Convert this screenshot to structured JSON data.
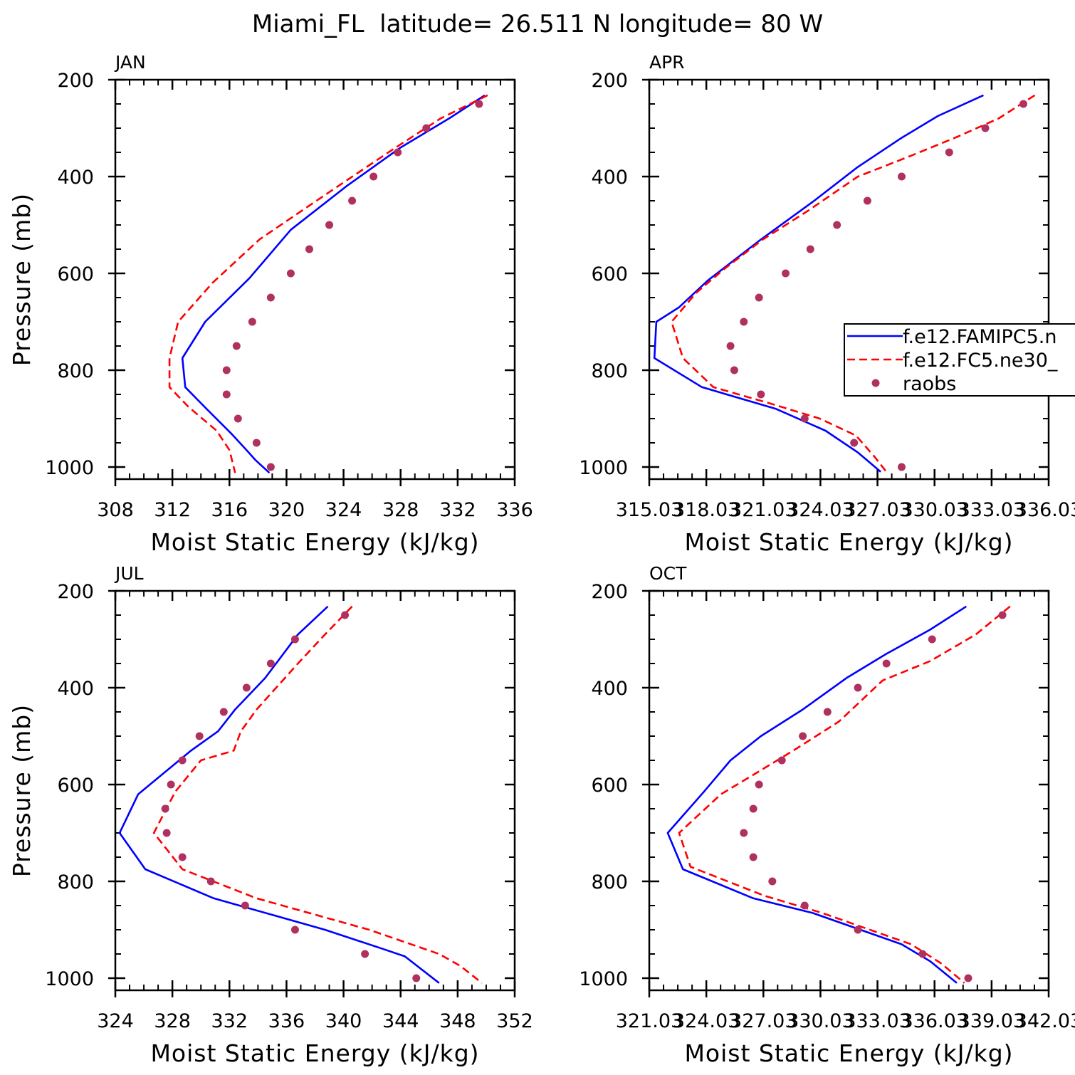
{
  "figure": {
    "title": "Miami_FL  latitude= 26.511 N longitude= 80 W"
  },
  "legend": {
    "placement": "right-middle of APR panel (clipped at figure edge)",
    "entries": [
      {
        "label": "f.e12.FAMIPC5.n",
        "style": "solid",
        "color": "#0000ff"
      },
      {
        "label": "f.e12.FC5.ne30_",
        "style": "dashed",
        "color": "#ff0000"
      },
      {
        "label": "raobs",
        "style": "dot",
        "color": "#b03060"
      }
    ]
  },
  "colors": {
    "model_solid": "#0000ff",
    "model_dashed": "#ff0000",
    "obs": "#b03060"
  },
  "chart_data": [
    {
      "type": "line",
      "panel_label": "JAN",
      "xlabel": "Moist Static Energy (kJ/kg)",
      "ylabel": "Pressure (mb)",
      "xlim": [
        308,
        336
      ],
      "ylim": [
        200,
        1020
      ],
      "y_inverted": true,
      "xticks": [
        308,
        312,
        316,
        320,
        324,
        328,
        332,
        336
      ],
      "xtick_labels": [
        "308",
        "312",
        "316",
        "320",
        "324",
        "328",
        "332",
        "336"
      ],
      "yticks": [
        200,
        400,
        600,
        800,
        1000
      ],
      "ytick_labels": [
        "200",
        "400",
        "600",
        "800",
        "1000"
      ],
      "grid": false,
      "series": [
        {
          "name": "f.e12.FAMIPC5.n",
          "style": "solid",
          "x": [
            333.9,
            331.4,
            328.0,
            324.2,
            320.3,
            317.4,
            314.3,
            312.7,
            312.9,
            314.4,
            316.1,
            317.2,
            317.8,
            318.8
          ],
          "y": [
            232,
            280,
            340,
            420,
            510,
            610,
            700,
            775,
            835,
            880,
            930,
            965,
            985,
            1012
          ]
        },
        {
          "name": "f.e12.FC5.ne30_",
          "style": "dashed",
          "x": [
            334.1,
            330.8,
            327.4,
            322.6,
            318.1,
            314.8,
            312.4,
            311.8,
            311.8,
            313.1,
            315.1,
            316.0,
            316.4
          ],
          "y": [
            232,
            280,
            345,
            440,
            530,
            620,
            700,
            775,
            835,
            875,
            925,
            965,
            1012
          ]
        },
        {
          "name": "raobs",
          "style": "dots",
          "x": [
            333.5,
            329.8,
            327.8,
            326.1,
            324.6,
            323.0,
            321.6,
            320.3,
            318.9,
            317.6,
            316.5,
            315.8,
            315.8,
            316.6,
            317.9,
            318.9
          ],
          "y": [
            250,
            300,
            350,
            400,
            450,
            500,
            550,
            600,
            650,
            700,
            750,
            800,
            850,
            900,
            950,
            1000
          ]
        }
      ]
    },
    {
      "type": "line",
      "panel_label": "APR",
      "xlabel": "Moist Static Energy (kJ/kg)",
      "ylabel": "",
      "xlim": [
        315.03,
        336.03
      ],
      "ylim": [
        200,
        1020
      ],
      "y_inverted": true,
      "xticks": [
        315.03,
        318.03,
        321.03,
        324.03,
        327.03,
        330.03,
        333.03,
        336.03
      ],
      "xtick_labels": [
        "315.03",
        "318.03",
        "321.03",
        "324.03",
        "327.03",
        "330.03",
        "333.03",
        "336.03"
      ],
      "yticks": [
        200,
        400,
        600,
        800,
        1000
      ],
      "ytick_labels": [
        "200",
        "400",
        "600",
        "800",
        "1000"
      ],
      "grid": false,
      "series": [
        {
          "name": "f.e12.FAMIPC5.n",
          "style": "solid",
          "x": [
            332.6,
            330.2,
            328.3,
            326.0,
            323.7,
            320.9,
            318.1,
            316.6,
            315.4,
            315.3,
            317.8,
            321.7,
            324.3,
            326.0,
            327.2
          ],
          "y": [
            232,
            275,
            320,
            380,
            450,
            530,
            615,
            670,
            700,
            775,
            835,
            880,
            925,
            970,
            1010
          ]
        },
        {
          "name": "f.e12.FC5.ne30_",
          "style": "dashed",
          "x": [
            335.3,
            333.4,
            331.1,
            328.6,
            326.0,
            323.4,
            321.0,
            319.0,
            317.5,
            316.2,
            316.8,
            318.4,
            321.5,
            324.0,
            325.9,
            326.9,
            327.5
          ],
          "y": [
            232,
            280,
            320,
            360,
            400,
            470,
            530,
            590,
            640,
            700,
            775,
            835,
            870,
            900,
            935,
            980,
            1010
          ]
        },
        {
          "name": "raobs",
          "style": "dots",
          "x": [
            334.7,
            332.7,
            330.8,
            328.3,
            326.5,
            324.9,
            323.5,
            322.2,
            320.8,
            320.0,
            319.3,
            319.5,
            320.9,
            323.2,
            325.8,
            328.3
          ],
          "y": [
            250,
            300,
            350,
            400,
            450,
            500,
            550,
            600,
            650,
            700,
            750,
            800,
            850,
            900,
            950,
            1000
          ]
        }
      ]
    },
    {
      "type": "line",
      "panel_label": "JUL",
      "xlabel": "Moist Static Energy (kJ/kg)",
      "ylabel": "Pressure (mb)",
      "xlim": [
        324,
        352
      ],
      "ylim": [
        200,
        1020
      ],
      "y_inverted": true,
      "xticks": [
        324,
        328,
        332,
        336,
        340,
        344,
        348,
        352
      ],
      "xtick_labels": [
        "324",
        "328",
        "332",
        "336",
        "340",
        "344",
        "348",
        "352"
      ],
      "yticks": [
        200,
        400,
        600,
        800,
        1000
      ],
      "ytick_labels": [
        "200",
        "400",
        "600",
        "800",
        "1000"
      ],
      "grid": false,
      "series": [
        {
          "name": "f.e12.FAMIPC5.n",
          "style": "solid",
          "x": [
            338.9,
            336.8,
            334.5,
            332.4,
            331.2,
            329.3,
            325.6,
            324.3,
            326.1,
            330.9,
            338.7,
            342.8,
            344.3,
            346.7
          ],
          "y": [
            232,
            290,
            380,
            445,
            490,
            530,
            620,
            700,
            775,
            835,
            900,
            940,
            955,
            1010
          ]
        },
        {
          "name": "f.e12.FC5.ne30_",
          "style": "dashed",
          "x": [
            340.6,
            338.7,
            336.8,
            333.9,
            332.8,
            332.3,
            330.0,
            328.2,
            326.7,
            328.7,
            333.9,
            341.8,
            346.7,
            348.2,
            349.7
          ],
          "y": [
            232,
            290,
            350,
            445,
            490,
            530,
            550,
            615,
            700,
            775,
            835,
            900,
            950,
            975,
            1010
          ]
        },
        {
          "name": "raobs",
          "style": "dots",
          "x": [
            340.1,
            336.6,
            334.9,
            333.2,
            331.6,
            329.9,
            328.7,
            327.9,
            327.5,
            327.6,
            328.7,
            330.7,
            333.1,
            336.6,
            341.5,
            345.1
          ],
          "y": [
            250,
            300,
            350,
            400,
            450,
            500,
            550,
            600,
            650,
            700,
            750,
            800,
            850,
            900,
            950,
            1000
          ]
        }
      ]
    },
    {
      "type": "line",
      "panel_label": "OCT",
      "xlabel": "Moist Static Energy (kJ/kg)",
      "ylabel": "",
      "xlim": [
        321.03,
        342.03
      ],
      "ylim": [
        200,
        1020
      ],
      "y_inverted": true,
      "xticks": [
        321.03,
        324.03,
        327.03,
        330.03,
        333.03,
        336.03,
        339.03,
        342.03
      ],
      "xtick_labels": [
        "321.03",
        "324.03",
        "327.03",
        "330.03",
        "333.03",
        "336.03",
        "339.03",
        "342.03"
      ],
      "yticks": [
        200,
        400,
        600,
        800,
        1000
      ],
      "ytick_labels": [
        "200",
        "400",
        "600",
        "800",
        "1000"
      ],
      "grid": false,
      "series": [
        {
          "name": "f.e12.FAMIPC5.n",
          "style": "solid",
          "x": [
            337.7,
            335.8,
            333.5,
            331.4,
            329.1,
            326.9,
            325.3,
            323.9,
            322.0,
            322.8,
            326.5,
            329.6,
            334.3,
            335.8,
            337.2
          ],
          "y": [
            232,
            280,
            330,
            380,
            445,
            500,
            550,
            615,
            700,
            775,
            835,
            865,
            930,
            965,
            1010
          ]
        },
        {
          "name": "f.e12.FC5.ne30_",
          "style": "dashed",
          "x": [
            340.0,
            338.2,
            335.8,
            333.3,
            331.0,
            328.6,
            326.5,
            324.8,
            322.6,
            323.2,
            327.1,
            330.1,
            334.8,
            336.4,
            337.6
          ],
          "y": [
            232,
            290,
            345,
            385,
            470,
            530,
            580,
            620,
            700,
            770,
            830,
            865,
            930,
            970,
            1010
          ]
        },
        {
          "name": "raobs",
          "style": "dots",
          "x": [
            339.6,
            335.9,
            333.5,
            332.0,
            330.4,
            329.1,
            328.0,
            326.8,
            326.5,
            326.0,
            326.5,
            327.5,
            329.2,
            332.0,
            335.4,
            337.8
          ],
          "y": [
            250,
            300,
            350,
            400,
            450,
            500,
            550,
            600,
            650,
            700,
            750,
            800,
            850,
            900,
            950,
            1000
          ]
        }
      ]
    }
  ]
}
